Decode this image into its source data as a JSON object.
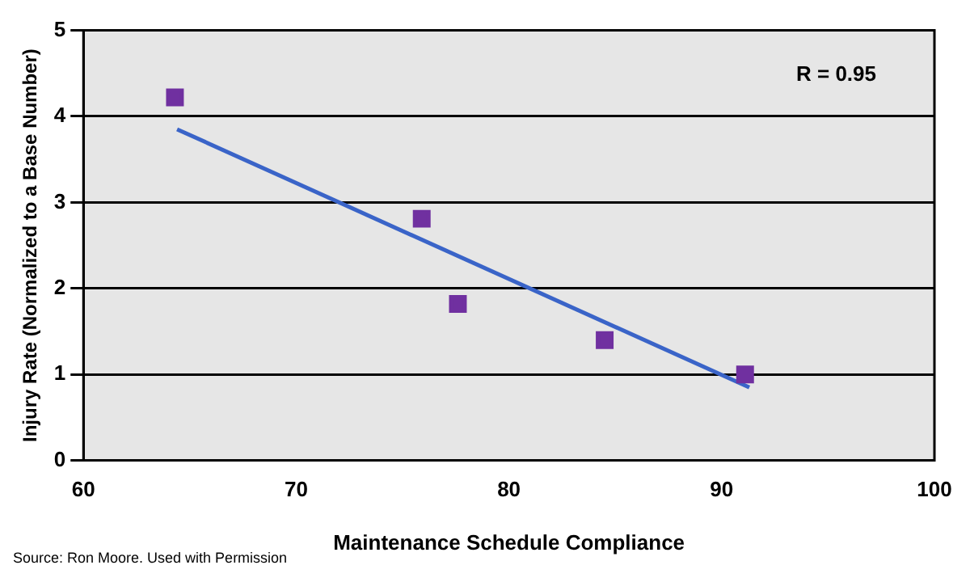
{
  "chart_data": {
    "type": "scatter",
    "xlabel": "Maintenance Schedule Compliance",
    "ylabel": "Injury Rate (Normalized to a Base Number)",
    "xlim": [
      60,
      100
    ],
    "xticks": [
      60,
      70,
      80,
      90,
      100
    ],
    "ylim": [
      0,
      5
    ],
    "yticks": [
      0,
      1,
      2,
      3,
      4,
      5
    ],
    "grid": "y",
    "legend": false,
    "marker": "square",
    "series": [
      {
        "color": "#7030a0",
        "x": [
          64.3,
          75.9,
          77.6,
          84.5,
          91.1
        ],
        "values": [
          4.22,
          2.81,
          1.82,
          1.4,
          1.0
        ]
      },
      {
        "type": "line",
        "color": "#3a64c8",
        "marker": "none",
        "x": [
          64.4,
          91.3
        ],
        "values": [
          3.85,
          0.85
        ]
      }
    ],
    "annotations": [
      "R = 0.95",
      "Source: Ron Moore. Used with Permission"
    ]
  }
}
